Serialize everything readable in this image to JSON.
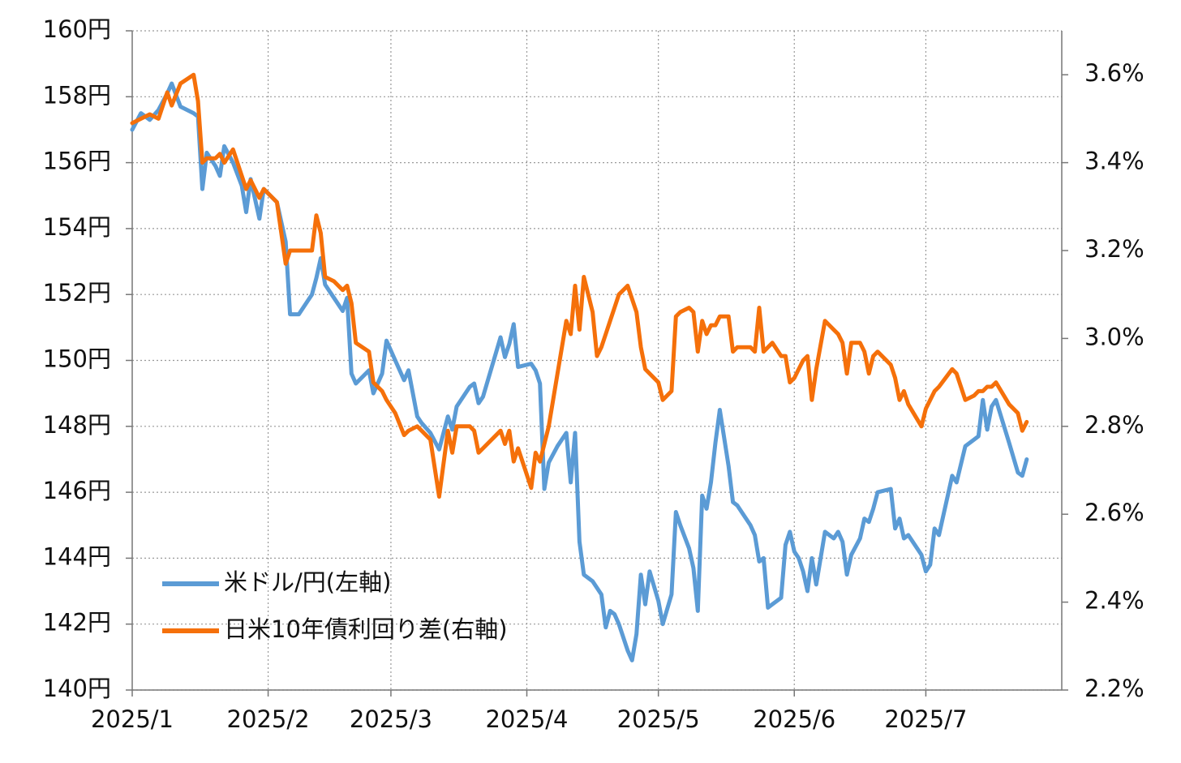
{
  "chart_data": {
    "type": "line",
    "x": [
      0,
      2,
      4,
      6,
      8,
      9,
      11,
      14,
      15,
      16,
      17,
      19,
      20,
      21,
      23,
      25,
      26,
      27,
      29,
      30,
      33,
      35,
      36,
      38,
      41,
      42,
      43,
      44,
      46,
      48,
      49,
      50,
      51,
      54,
      55,
      57,
      58,
      60,
      62,
      63,
      65,
      66,
      68,
      70,
      72,
      73,
      74,
      77,
      78,
      79,
      80,
      84,
      85,
      86,
      87,
      88,
      91,
      92,
      93,
      94,
      95,
      97,
      99,
      100,
      101,
      102,
      103,
      105,
      106,
      107,
      108,
      109,
      110,
      111,
      113,
      114,
      115,
      116,
      117,
      118,
      120,
      121,
      123,
      124,
      125,
      127,
      128,
      129,
      130,
      131,
      132,
      133,
      134,
      136,
      137,
      138,
      141,
      142,
      143,
      144,
      145,
      146,
      148,
      149,
      150,
      151,
      152,
      153,
      154,
      155,
      156,
      158,
      160,
      161,
      162,
      163,
      164,
      166,
      167,
      168,
      169,
      170,
      173,
      174,
      175,
      176,
      177,
      180,
      181,
      182,
      183,
      184,
      187,
      188,
      190,
      192,
      193,
      194,
      195,
      196,
      197,
      200,
      202,
      203,
      204
    ],
    "xlim": [
      0,
      212
    ],
    "xticks": [
      {
        "value": 0,
        "label": "2025/1"
      },
      {
        "value": 31,
        "label": "2025/2"
      },
      {
        "value": 59,
        "label": "2025/3"
      },
      {
        "value": 90,
        "label": "2025/4"
      },
      {
        "value": 120,
        "label": "2025/5"
      },
      {
        "value": 151,
        "label": "2025/6"
      },
      {
        "value": 181,
        "label": "2025/7"
      }
    ],
    "ylim": [
      140,
      160
    ],
    "yticks": [
      {
        "value": 140,
        "label": "140円"
      },
      {
        "value": 142,
        "label": "142円"
      },
      {
        "value": 144,
        "label": "144円"
      },
      {
        "value": 146,
        "label": "146円"
      },
      {
        "value": 148,
        "label": "148円"
      },
      {
        "value": 150,
        "label": "150円"
      },
      {
        "value": 152,
        "label": "152円"
      },
      {
        "value": 154,
        "label": "154円"
      },
      {
        "value": 156,
        "label": "156円"
      },
      {
        "value": 158,
        "label": "158円"
      },
      {
        "value": 160,
        "label": "160円"
      }
    ],
    "y2lim": [
      2.2,
      3.7
    ],
    "y2ticks": [
      {
        "value": 2.2,
        "label": "2.2%"
      },
      {
        "value": 2.4,
        "label": "2.4%"
      },
      {
        "value": 2.6,
        "label": "2.6%"
      },
      {
        "value": 2.8,
        "label": "2.8%"
      },
      {
        "value": 3.0,
        "label": "3.0%"
      },
      {
        "value": 3.2,
        "label": "3.2%"
      },
      {
        "value": 3.4,
        "label": "3.4%"
      },
      {
        "value": 3.6,
        "label": "3.6%"
      }
    ],
    "grid": true,
    "legend": "lower left",
    "series": [
      {
        "name": "米ドル/円(左軸)",
        "color": "#5b9bd5",
        "values": [
          157.0,
          157.5,
          157.3,
          157.6,
          158.1,
          158.4,
          157.7,
          157.5,
          157.4,
          155.2,
          156.3,
          155.9,
          155.6,
          156.5,
          156.0,
          155.3,
          154.5,
          155.5,
          154.3,
          155.2,
          154.8,
          153.6,
          151.4,
          151.4,
          152.0,
          152.5,
          153.1,
          152.3,
          151.9,
          151.5,
          151.9,
          149.6,
          149.3,
          149.7,
          149.0,
          149.6,
          150.6,
          150.0,
          149.4,
          149.7,
          148.3,
          148.1,
          147.8,
          147.3,
          148.3,
          147.9,
          148.6,
          149.2,
          149.3,
          148.7,
          148.9,
          150.7,
          150.1,
          150.5,
          151.1,
          149.8,
          149.9,
          149.7,
          149.3,
          146.1,
          146.9,
          147.4,
          147.8,
          146.3,
          147.8,
          144.5,
          143.5,
          143.3,
          143.1,
          142.9,
          141.9,
          142.4,
          142.3,
          142.0,
          141.2,
          140.9,
          141.7,
          143.5,
          142.6,
          143.6,
          142.7,
          142.0,
          142.9,
          145.4,
          145.0,
          144.3,
          143.7,
          142.4,
          145.9,
          145.5,
          146.3,
          147.5,
          148.5,
          146.8,
          145.7,
          145.6,
          145.0,
          144.7,
          143.9,
          144.0,
          142.5,
          142.6,
          142.8,
          144.4,
          144.8,
          144.2,
          144.0,
          143.6,
          143.0,
          144.0,
          143.2,
          144.8,
          144.6,
          144.8,
          144.5,
          143.5,
          144.1,
          144.6,
          145.2,
          145.1,
          145.5,
          146.0,
          146.1,
          144.9,
          145.2,
          144.6,
          144.7,
          144.1,
          143.6,
          143.8,
          144.9,
          144.7,
          146.5,
          146.3,
          147.4,
          147.6,
          147.7,
          148.8,
          147.9,
          148.6,
          148.8,
          147.5,
          146.6,
          146.5,
          147.0
        ]
      },
      {
        "name": "日米10年債利回り差(右軸)",
        "color": "#f5700a",
        "axis": "y2",
        "values": [
          3.49,
          3.5,
          3.51,
          3.5,
          3.56,
          3.53,
          3.58,
          3.6,
          3.54,
          3.4,
          3.41,
          3.41,
          3.42,
          3.4,
          3.43,
          3.37,
          3.34,
          3.36,
          3.32,
          3.34,
          3.31,
          3.17,
          3.2,
          3.2,
          3.2,
          3.28,
          3.24,
          3.14,
          3.13,
          3.11,
          3.12,
          3.08,
          2.99,
          2.97,
          2.9,
          2.88,
          2.86,
          2.83,
          2.78,
          2.79,
          2.8,
          2.79,
          2.77,
          2.64,
          2.79,
          2.74,
          2.8,
          2.8,
          2.79,
          2.74,
          2.75,
          2.79,
          2.76,
          2.79,
          2.72,
          2.75,
          2.66,
          2.74,
          2.72,
          2.76,
          2.8,
          2.92,
          3.04,
          3.01,
          3.12,
          3.02,
          3.14,
          3.06,
          2.96,
          2.98,
          3.01,
          3.04,
          3.07,
          3.1,
          3.12,
          3.09,
          3.06,
          2.98,
          2.93,
          2.92,
          2.9,
          2.86,
          2.88,
          3.05,
          3.06,
          3.07,
          3.06,
          2.97,
          3.04,
          3.01,
          3.03,
          3.03,
          3.05,
          3.05,
          2.97,
          2.98,
          2.98,
          2.97,
          3.07,
          2.97,
          2.98,
          2.99,
          2.96,
          2.96,
          2.9,
          2.91,
          2.93,
          2.95,
          2.96,
          2.86,
          2.93,
          3.04,
          3.02,
          3.01,
          2.99,
          2.92,
          2.99,
          2.99,
          2.97,
          2.92,
          2.96,
          2.97,
          2.94,
          2.91,
          2.86,
          2.88,
          2.85,
          2.8,
          2.84,
          2.86,
          2.88,
          2.89,
          2.93,
          2.92,
          2.86,
          2.87,
          2.88,
          2.88,
          2.89,
          2.89,
          2.9,
          2.85,
          2.83,
          2.79,
          2.81
        ]
      }
    ]
  }
}
